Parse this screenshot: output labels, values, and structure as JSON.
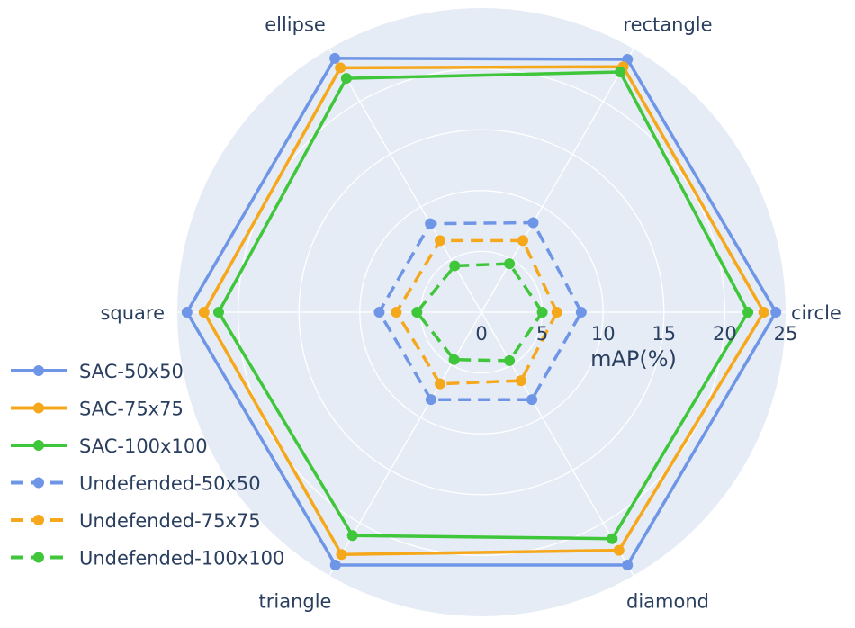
{
  "chart_data": {
    "type": "radar",
    "categories": [
      "circle",
      "rectangle",
      "ellipse",
      "square",
      "triangle",
      "diamond"
    ],
    "radial_axis": {
      "title": "mAP(%)",
      "range": [
        0,
        25
      ],
      "ticks": [
        0,
        5,
        10,
        15,
        20,
        25
      ],
      "tick_labels": [
        "0",
        "5",
        "10",
        "15",
        "20",
        "25"
      ]
    },
    "grid": true,
    "background_color": "#e5ecf6",
    "legend_position": "bottom-left",
    "series": [
      {
        "name": "SAC-50x50",
        "color": "#6f96e6",
        "dash": "solid",
        "values": [
          24.2,
          24.0,
          24.1,
          24.2,
          24.0,
          24.0
        ]
      },
      {
        "name": "SAC-75x75",
        "color": "#f6a81c",
        "dash": "solid",
        "values": [
          23.2,
          23.3,
          23.2,
          22.8,
          23.0,
          22.6
        ]
      },
      {
        "name": "SAC-100x100",
        "color": "#3fc63a",
        "dash": "solid",
        "values": [
          21.9,
          22.8,
          22.2,
          21.6,
          21.2,
          21.5
        ]
      },
      {
        "name": "Undefended-50x50",
        "color": "#6f96e6",
        "dash": "dash",
        "values": [
          8.2,
          8.5,
          8.4,
          8.4,
          8.3,
          8.3
        ]
      },
      {
        "name": "Undefended-75x75",
        "color": "#f6a81c",
        "dash": "dash",
        "values": [
          6.2,
          6.8,
          6.8,
          7.0,
          6.8,
          6.5
        ]
      },
      {
        "name": "Undefended-100x100",
        "color": "#3fc63a",
        "dash": "dash",
        "values": [
          5.0,
          4.6,
          4.4,
          5.3,
          4.5,
          4.6
        ]
      }
    ]
  }
}
